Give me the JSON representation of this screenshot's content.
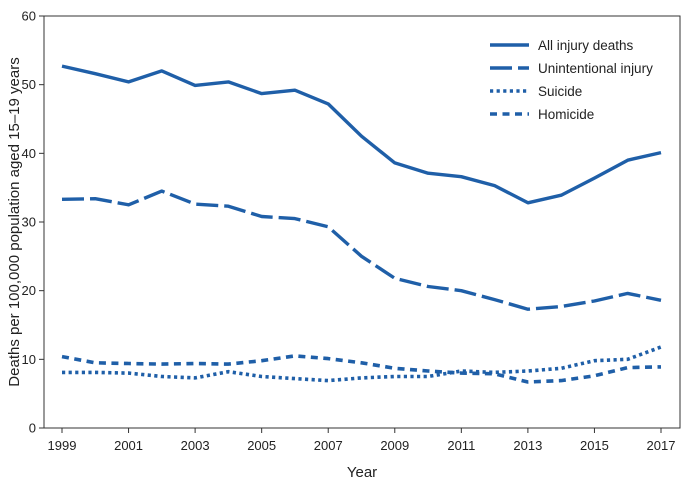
{
  "chart_data": {
    "type": "line",
    "title": "",
    "xlabel": "Year",
    "ylabel": "Deaths per 100,000 population aged 15–19 years",
    "xlim": [
      1999,
      2017
    ],
    "ylim": [
      0,
      60
    ],
    "x": [
      1999,
      2000,
      2001,
      2002,
      2003,
      2004,
      2005,
      2006,
      2007,
      2008,
      2009,
      2010,
      2011,
      2012,
      2013,
      2014,
      2015,
      2016,
      2017
    ],
    "x_ticks": [
      1999,
      2001,
      2003,
      2005,
      2007,
      2009,
      2011,
      2013,
      2015,
      2017
    ],
    "y_ticks": [
      0,
      10,
      20,
      30,
      40,
      50,
      60
    ],
    "grid": false,
    "legend_position": "top-right",
    "series": [
      {
        "name": "All injury deaths",
        "style": "solid",
        "color": "#1f5fa8",
        "values": [
          52.7,
          51.6,
          50.4,
          52.0,
          49.9,
          50.4,
          48.7,
          49.2,
          47.2,
          42.5,
          38.6,
          37.1,
          36.6,
          35.3,
          32.8,
          33.9,
          36.4,
          39.0,
          40.1
        ]
      },
      {
        "name": "Unintentional injury",
        "style": "dashed",
        "color": "#1f5fa8",
        "values": [
          33.3,
          33.4,
          32.5,
          34.5,
          32.6,
          32.3,
          30.8,
          30.5,
          29.3,
          25.0,
          21.8,
          20.6,
          20.0,
          18.7,
          17.3,
          17.7,
          18.5,
          19.6,
          18.6
        ]
      },
      {
        "name": "Suicide",
        "style": "dotted",
        "color": "#1f5fa8",
        "values": [
          8.1,
          8.1,
          8.0,
          7.5,
          7.3,
          8.2,
          7.5,
          7.2,
          6.9,
          7.3,
          7.5,
          7.5,
          8.3,
          8.1,
          8.3,
          8.7,
          9.8,
          10.0,
          11.8
        ]
      },
      {
        "name": "Homicide",
        "style": "dashed-short",
        "color": "#1f5fa8",
        "values": [
          10.4,
          9.5,
          9.4,
          9.3,
          9.4,
          9.3,
          9.8,
          10.5,
          10.1,
          9.5,
          8.7,
          8.3,
          8.0,
          7.9,
          6.7,
          6.9,
          7.6,
          8.8,
          8.9
        ]
      }
    ]
  }
}
